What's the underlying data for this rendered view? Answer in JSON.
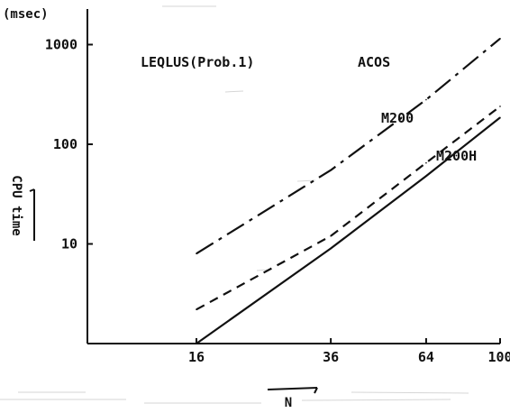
{
  "chart_data": {
    "type": "line",
    "title": "LEQLUS(Prob.1)",
    "xlabel": "N",
    "ylabel": "CPU time",
    "yunit": "(msec)",
    "xscale": "log",
    "yscale": "log",
    "x": [
      16,
      36,
      64,
      100
    ],
    "xtick_labels": [
      "16",
      "36",
      "64",
      "100"
    ],
    "ytick_labels": [
      "10",
      "100",
      "1000"
    ],
    "ylim": [
      1,
      1500
    ],
    "series": [
      {
        "name": "ACOS",
        "line_style": "dash-dot",
        "color": "#111111",
        "values": [
          8,
          55,
          280,
          1150
        ]
      },
      {
        "name": "M200",
        "line_style": "dashed",
        "color": "#111111",
        "values": [
          2.2,
          12,
          65,
          240
        ]
      },
      {
        "name": "M200H",
        "line_style": "solid",
        "color": "#111111",
        "values": [
          1,
          9,
          48,
          185
        ]
      }
    ]
  }
}
